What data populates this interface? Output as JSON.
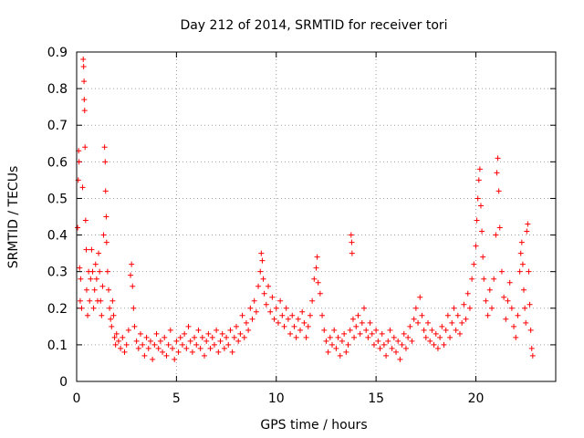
{
  "chart_data": {
    "type": "scatter",
    "title": "Day 212 of 2014, SRMTID for receiver tori",
    "xlabel": "GPS time / hours",
    "ylabel": "SRMTID / TECUs",
    "xlim": [
      0,
      24
    ],
    "ylim": [
      0,
      0.9
    ],
    "xticks": [
      0,
      5,
      10,
      15,
      20
    ],
    "yticks": [
      0,
      0.1,
      0.2,
      0.3,
      0.4,
      0.5,
      0.6,
      0.7,
      0.8,
      0.9
    ],
    "grid": true,
    "marker": "+",
    "color": "#ff0000",
    "series": [
      {
        "name": "SRMTID",
        "points": [
          [
            0.05,
            0.42
          ],
          [
            0.08,
            0.55
          ],
          [
            0.1,
            0.63
          ],
          [
            0.12,
            0.6
          ],
          [
            0.15,
            0.31
          ],
          [
            0.18,
            0.22
          ],
          [
            0.2,
            0.28
          ],
          [
            0.25,
            0.2
          ],
          [
            0.3,
            0.53
          ],
          [
            0.33,
            0.88
          ],
          [
            0.35,
            0.86
          ],
          [
            0.37,
            0.82
          ],
          [
            0.38,
            0.77
          ],
          [
            0.4,
            0.74
          ],
          [
            0.42,
            0.64
          ],
          [
            0.45,
            0.44
          ],
          [
            0.48,
            0.36
          ],
          [
            0.5,
            0.25
          ],
          [
            0.55,
            0.18
          ],
          [
            0.6,
            0.3
          ],
          [
            0.65,
            0.22
          ],
          [
            0.7,
            0.28
          ],
          [
            0.75,
            0.36
          ],
          [
            0.8,
            0.3
          ],
          [
            0.85,
            0.2
          ],
          [
            0.9,
            0.25
          ],
          [
            0.95,
            0.32
          ],
          [
            1.0,
            0.28
          ],
          [
            1.05,
            0.22
          ],
          [
            1.1,
            0.35
          ],
          [
            1.15,
            0.3
          ],
          [
            1.2,
            0.22
          ],
          [
            1.25,
            0.18
          ],
          [
            1.3,
            0.26
          ],
          [
            1.35,
            0.4
          ],
          [
            1.4,
            0.64
          ],
          [
            1.43,
            0.6
          ],
          [
            1.45,
            0.52
          ],
          [
            1.48,
            0.45
          ],
          [
            1.5,
            0.38
          ],
          [
            1.55,
            0.3
          ],
          [
            1.6,
            0.25
          ],
          [
            1.65,
            0.2
          ],
          [
            1.7,
            0.17
          ],
          [
            1.75,
            0.15
          ],
          [
            1.8,
            0.22
          ],
          [
            1.85,
            0.18
          ],
          [
            1.9,
            0.12
          ],
          [
            1.95,
            0.1
          ],
          [
            2.0,
            0.13
          ],
          [
            2.1,
            0.11
          ],
          [
            2.2,
            0.09
          ],
          [
            2.3,
            0.12
          ],
          [
            2.4,
            0.08
          ],
          [
            2.5,
            0.1
          ],
          [
            2.6,
            0.14
          ],
          [
            2.7,
            0.29
          ],
          [
            2.75,
            0.32
          ],
          [
            2.8,
            0.26
          ],
          [
            2.85,
            0.2
          ],
          [
            2.9,
            0.15
          ],
          [
            3.0,
            0.11
          ],
          [
            3.1,
            0.09
          ],
          [
            3.2,
            0.13
          ],
          [
            3.3,
            0.1
          ],
          [
            3.4,
            0.07
          ],
          [
            3.5,
            0.12
          ],
          [
            3.6,
            0.09
          ],
          [
            3.7,
            0.11
          ],
          [
            3.8,
            0.06
          ],
          [
            3.9,
            0.1
          ],
          [
            4.0,
            0.13
          ],
          [
            4.1,
            0.09
          ],
          [
            4.2,
            0.11
          ],
          [
            4.3,
            0.08
          ],
          [
            4.4,
            0.12
          ],
          [
            4.5,
            0.07
          ],
          [
            4.6,
            0.1
          ],
          [
            4.7,
            0.14
          ],
          [
            4.8,
            0.09
          ],
          [
            4.9,
            0.06
          ],
          [
            5.0,
            0.11
          ],
          [
            5.1,
            0.08
          ],
          [
            5.2,
            0.12
          ],
          [
            5.3,
            0.1
          ],
          [
            5.4,
            0.13
          ],
          [
            5.5,
            0.09
          ],
          [
            5.6,
            0.15
          ],
          [
            5.7,
            0.11
          ],
          [
            5.8,
            0.08
          ],
          [
            5.9,
            0.12
          ],
          [
            6.0,
            0.1
          ],
          [
            6.1,
            0.14
          ],
          [
            6.2,
            0.09
          ],
          [
            6.3,
            0.12
          ],
          [
            6.4,
            0.07
          ],
          [
            6.5,
            0.11
          ],
          [
            6.6,
            0.13
          ],
          [
            6.7,
            0.09
          ],
          [
            6.8,
            0.12
          ],
          [
            6.9,
            0.1
          ],
          [
            7.0,
            0.14
          ],
          [
            7.1,
            0.08
          ],
          [
            7.2,
            0.11
          ],
          [
            7.3,
            0.13
          ],
          [
            7.4,
            0.09
          ],
          [
            7.5,
            0.12
          ],
          [
            7.6,
            0.1
          ],
          [
            7.7,
            0.14
          ],
          [
            7.8,
            0.08
          ],
          [
            7.9,
            0.12
          ],
          [
            8.0,
            0.15
          ],
          [
            8.1,
            0.11
          ],
          [
            8.2,
            0.13
          ],
          [
            8.3,
            0.18
          ],
          [
            8.4,
            0.12
          ],
          [
            8.5,
            0.16
          ],
          [
            8.6,
            0.14
          ],
          [
            8.7,
            0.2
          ],
          [
            8.8,
            0.17
          ],
          [
            8.9,
            0.22
          ],
          [
            9.0,
            0.19
          ],
          [
            9.1,
            0.26
          ],
          [
            9.2,
            0.3
          ],
          [
            9.25,
            0.35
          ],
          [
            9.3,
            0.33
          ],
          [
            9.35,
            0.28
          ],
          [
            9.4,
            0.24
          ],
          [
            9.5,
            0.21
          ],
          [
            9.6,
            0.26
          ],
          [
            9.7,
            0.19
          ],
          [
            9.8,
            0.23
          ],
          [
            9.9,
            0.17
          ],
          [
            10.0,
            0.2
          ],
          [
            10.1,
            0.16
          ],
          [
            10.2,
            0.22
          ],
          [
            10.3,
            0.18
          ],
          [
            10.4,
            0.15
          ],
          [
            10.5,
            0.2
          ],
          [
            10.6,
            0.17
          ],
          [
            10.7,
            0.13
          ],
          [
            10.8,
            0.18
          ],
          [
            10.9,
            0.15
          ],
          [
            11.0,
            0.12
          ],
          [
            11.1,
            0.17
          ],
          [
            11.2,
            0.14
          ],
          [
            11.3,
            0.19
          ],
          [
            11.4,
            0.16
          ],
          [
            11.5,
            0.12
          ],
          [
            11.6,
            0.15
          ],
          [
            11.7,
            0.18
          ],
          [
            11.8,
            0.22
          ],
          [
            11.9,
            0.28
          ],
          [
            12.0,
            0.31
          ],
          [
            12.05,
            0.34
          ],
          [
            12.1,
            0.27
          ],
          [
            12.2,
            0.24
          ],
          [
            12.3,
            0.18
          ],
          [
            12.4,
            0.14
          ],
          [
            12.5,
            0.11
          ],
          [
            12.6,
            0.08
          ],
          [
            12.7,
            0.12
          ],
          [
            12.8,
            0.1
          ],
          [
            12.9,
            0.14
          ],
          [
            13.0,
            0.09
          ],
          [
            13.1,
            0.12
          ],
          [
            13.2,
            0.07
          ],
          [
            13.3,
            0.11
          ],
          [
            13.4,
            0.13
          ],
          [
            13.5,
            0.08
          ],
          [
            13.6,
            0.1
          ],
          [
            13.7,
            0.14
          ],
          [
            13.75,
            0.4
          ],
          [
            13.78,
            0.38
          ],
          [
            13.8,
            0.35
          ],
          [
            13.85,
            0.17
          ],
          [
            13.9,
            0.12
          ],
          [
            14.0,
            0.15
          ],
          [
            14.1,
            0.18
          ],
          [
            14.2,
            0.13
          ],
          [
            14.3,
            0.16
          ],
          [
            14.4,
            0.2
          ],
          [
            14.5,
            0.14
          ],
          [
            14.6,
            0.12
          ],
          [
            14.7,
            0.16
          ],
          [
            14.8,
            0.13
          ],
          [
            14.9,
            0.1
          ],
          [
            15.0,
            0.14
          ],
          [
            15.1,
            0.11
          ],
          [
            15.2,
            0.09
          ],
          [
            15.3,
            0.13
          ],
          [
            15.4,
            0.1
          ],
          [
            15.5,
            0.07
          ],
          [
            15.6,
            0.11
          ],
          [
            15.7,
            0.14
          ],
          [
            15.8,
            0.09
          ],
          [
            15.9,
            0.12
          ],
          [
            16.0,
            0.08
          ],
          [
            16.1,
            0.11
          ],
          [
            16.2,
            0.06
          ],
          [
            16.3,
            0.1
          ],
          [
            16.4,
            0.13
          ],
          [
            16.5,
            0.09
          ],
          [
            16.6,
            0.12
          ],
          [
            16.7,
            0.15
          ],
          [
            16.8,
            0.11
          ],
          [
            16.9,
            0.17
          ],
          [
            17.0,
            0.2
          ],
          [
            17.1,
            0.16
          ],
          [
            17.2,
            0.23
          ],
          [
            17.3,
            0.18
          ],
          [
            17.4,
            0.14
          ],
          [
            17.5,
            0.12
          ],
          [
            17.6,
            0.16
          ],
          [
            17.7,
            0.11
          ],
          [
            17.8,
            0.14
          ],
          [
            17.9,
            0.1
          ],
          [
            18.0,
            0.13
          ],
          [
            18.1,
            0.09
          ],
          [
            18.2,
            0.12
          ],
          [
            18.3,
            0.15
          ],
          [
            18.4,
            0.1
          ],
          [
            18.5,
            0.14
          ],
          [
            18.6,
            0.18
          ],
          [
            18.7,
            0.12
          ],
          [
            18.8,
            0.16
          ],
          [
            18.9,
            0.2
          ],
          [
            19.0,
            0.14
          ],
          [
            19.1,
            0.18
          ],
          [
            19.2,
            0.13
          ],
          [
            19.3,
            0.16
          ],
          [
            19.4,
            0.21
          ],
          [
            19.5,
            0.17
          ],
          [
            19.6,
            0.24
          ],
          [
            19.7,
            0.2
          ],
          [
            19.8,
            0.28
          ],
          [
            19.9,
            0.32
          ],
          [
            20.0,
            0.37
          ],
          [
            20.05,
            0.44
          ],
          [
            20.1,
            0.5
          ],
          [
            20.15,
            0.55
          ],
          [
            20.2,
            0.58
          ],
          [
            20.25,
            0.48
          ],
          [
            20.3,
            0.41
          ],
          [
            20.35,
            0.34
          ],
          [
            20.4,
            0.28
          ],
          [
            20.5,
            0.22
          ],
          [
            20.6,
            0.18
          ],
          [
            20.7,
            0.25
          ],
          [
            20.8,
            0.2
          ],
          [
            20.9,
            0.28
          ],
          [
            21.0,
            0.4
          ],
          [
            21.05,
            0.57
          ],
          [
            21.1,
            0.61
          ],
          [
            21.15,
            0.52
          ],
          [
            21.2,
            0.42
          ],
          [
            21.3,
            0.3
          ],
          [
            21.4,
            0.23
          ],
          [
            21.5,
            0.17
          ],
          [
            21.6,
            0.22
          ],
          [
            21.7,
            0.27
          ],
          [
            21.8,
            0.2
          ],
          [
            21.9,
            0.15
          ],
          [
            22.0,
            0.12
          ],
          [
            22.1,
            0.18
          ],
          [
            22.2,
            0.3
          ],
          [
            22.25,
            0.35
          ],
          [
            22.3,
            0.38
          ],
          [
            22.35,
            0.32
          ],
          [
            22.4,
            0.25
          ],
          [
            22.45,
            0.2
          ],
          [
            22.5,
            0.16
          ],
          [
            22.55,
            0.41
          ],
          [
            22.6,
            0.43
          ],
          [
            22.65,
            0.3
          ],
          [
            22.7,
            0.21
          ],
          [
            22.75,
            0.14
          ],
          [
            22.8,
            0.09
          ],
          [
            22.85,
            0.07
          ]
        ]
      }
    ]
  }
}
